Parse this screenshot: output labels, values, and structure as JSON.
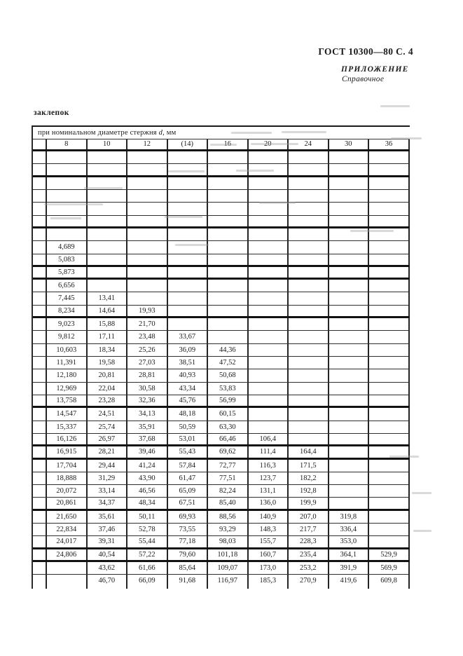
{
  "page_header": {
    "standard_ref": "ГОСТ 10300—80 С. 4",
    "annex_label": "ПРИЛОЖЕНИЕ",
    "annex_note": "Справочное"
  },
  "body_text": {
    "fragment": "заклепок"
  },
  "table": {
    "span_header": {
      "prefix": "при номинальном диаметре стержня ",
      "symbol": "d",
      "suffix": ", мм"
    },
    "columns": [
      "8",
      "10",
      "12",
      "(14)",
      "16",
      "20",
      "24",
      "30",
      "36"
    ],
    "rows": [
      [
        "",
        "",
        "",
        "",
        "",
        "",
        "",
        "",
        ""
      ],
      [
        "",
        "",
        "",
        "",
        "",
        "",
        "",
        "",
        ""
      ],
      [
        "",
        "",
        "",
        "",
        "",
        "",
        "",
        "",
        ""
      ],
      [
        "",
        "",
        "",
        "",
        "",
        "",
        "",
        "",
        ""
      ],
      [
        "",
        "",
        "",
        "",
        "",
        "",
        "",
        "",
        ""
      ],
      [
        "",
        "",
        "",
        "",
        "",
        "",
        "",
        "",
        ""
      ],
      [
        "",
        "",
        "",
        "",
        "",
        "",
        "",
        "",
        ""
      ],
      [
        "4,689",
        "",
        "",
        "",
        "",
        "",
        "",
        "",
        ""
      ],
      [
        "5,083",
        "",
        "",
        "",
        "",
        "",
        "",
        "",
        ""
      ],
      [
        "5,873",
        "",
        "",
        "",
        "",
        "",
        "",
        "",
        ""
      ],
      [
        "6,656",
        "",
        "",
        "",
        "",
        "",
        "",
        "",
        ""
      ],
      [
        "7,445",
        "13,41",
        "",
        "",
        "",
        "",
        "",
        "",
        ""
      ],
      [
        "8,234",
        "14,64",
        "19,93",
        "",
        "",
        "",
        "",
        "",
        ""
      ],
      [
        "9,023",
        "15,88",
        "21,70",
        "",
        "",
        "",
        "",
        "",
        ""
      ],
      [
        "9,812",
        "17,11",
        "23,48",
        "33,67",
        "",
        "",
        "",
        "",
        ""
      ],
      [
        "10,603",
        "18,34",
        "25,26",
        "36,09",
        "44,36",
        "",
        "",
        "",
        ""
      ],
      [
        "11,391",
        "19,58",
        "27,03",
        "38,51",
        "47,52",
        "",
        "",
        "",
        ""
      ],
      [
        "12,180",
        "20,81",
        "28,81",
        "40,93",
        "50,68",
        "",
        "",
        "",
        ""
      ],
      [
        "12,969",
        "22,04",
        "30,58",
        "43,34",
        "53,83",
        "",
        "",
        "",
        ""
      ],
      [
        "13,758",
        "23,28",
        "32,36",
        "45,76",
        "56,99",
        "",
        "",
        "",
        ""
      ],
      [
        "14,547",
        "24,51",
        "34,13",
        "48,18",
        "60,15",
        "",
        "",
        "",
        ""
      ],
      [
        "15,337",
        "25,74",
        "35,91",
        "50,59",
        "63,30",
        "",
        "",
        "",
        ""
      ],
      [
        "16,126",
        "26,97",
        "37,68",
        "53,01",
        "66,46",
        "106,4",
        "",
        "",
        ""
      ],
      [
        "16,915",
        "28,21",
        "39,46",
        "55,43",
        "69,62",
        "111,4",
        "164,4",
        "",
        ""
      ],
      [
        "17,704",
        "29,44",
        "41,24",
        "57,84",
        "72,77",
        "116,3",
        "171,5",
        "",
        ""
      ],
      [
        "18,888",
        "31,29",
        "43,90",
        "61,47",
        "77,51",
        "123,7",
        "182,2",
        "",
        ""
      ],
      [
        "20,072",
        "33,14",
        "46,56",
        "65,09",
        "82,24",
        "131,1",
        "192,8",
        "",
        ""
      ],
      [
        "20,861",
        "34,37",
        "48,34",
        "67,51",
        "85,40",
        "136,0",
        "199,9",
        "",
        ""
      ],
      [
        "21,650",
        "35,61",
        "50,11",
        "69,93",
        "88,56",
        "140,9",
        "207,0",
        "319,8",
        ""
      ],
      [
        "22,834",
        "37,46",
        "52,78",
        "73,55",
        "93,29",
        "148,3",
        "217,7",
        "336,4",
        ""
      ],
      [
        "24,017",
        "39,31",
        "55,44",
        "77,18",
        "98,03",
        "155,7",
        "228,3",
        "353,0",
        ""
      ],
      [
        "24,806",
        "40,54",
        "57,22",
        "79,60",
        "101,18",
        "160,7",
        "235,4",
        "364,1",
        "529,9"
      ],
      [
        "",
        "43,62",
        "61,66",
        "85,64",
        "109,07",
        "173,0",
        "253,2",
        "391,9",
        "569,9"
      ],
      [
        "",
        "46,70",
        "66,09",
        "91,68",
        "116,97",
        "185,3",
        "270,9",
        "419,6",
        "609,8"
      ]
    ],
    "group_separator_after_rows": [
      2,
      6,
      9,
      10,
      13,
      20,
      23,
      24,
      28,
      31,
      32
    ]
  }
}
